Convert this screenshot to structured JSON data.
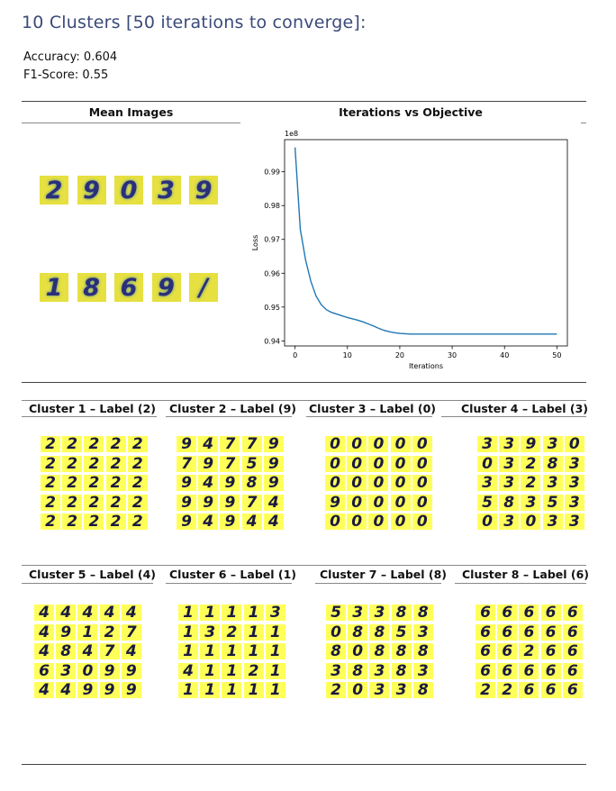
{
  "title": "10 Clusters [50 iterations to converge]:",
  "metrics": {
    "accuracy": "Accuracy: 0.604",
    "f1": "F1-Score: 0.55"
  },
  "top_headers": {
    "mean_images": "Mean Images",
    "iterations": "Iterations vs Objective"
  },
  "mean_images": {
    "row1": [
      "2",
      "9",
      "0",
      "3",
      "9"
    ],
    "row2": [
      "1",
      "8",
      "6",
      "9",
      "/"
    ]
  },
  "chart_data": {
    "type": "line",
    "title": "",
    "xlabel": "Iterations",
    "ylabel": "Loss",
    "multiplier_label": "1e8",
    "xlim": [
      -2,
      52
    ],
    "ylim": [
      0.9385,
      0.9995
    ],
    "xticks": [
      0,
      10,
      20,
      30,
      40,
      50
    ],
    "yticks": [
      0.94,
      0.95,
      0.96,
      0.97,
      0.98,
      0.99
    ],
    "ytick_labels": [
      "0.94",
      "0.95",
      "0.96",
      "0.97",
      "0.98",
      "0.99"
    ],
    "color": "#1f77b4",
    "grid": false,
    "series": [
      {
        "x": [
          0,
          1,
          2,
          3,
          4,
          5,
          6,
          7,
          8,
          9,
          10,
          11,
          12,
          13,
          14,
          15,
          16,
          17,
          18,
          19,
          20,
          21,
          22,
          23,
          24,
          25,
          26,
          27,
          28,
          29,
          30,
          31,
          32,
          33,
          34,
          35,
          36,
          37,
          38,
          39,
          40,
          41,
          42,
          43,
          44,
          45,
          46,
          47,
          48,
          49,
          50
        ],
        "values": [
          0.9972,
          0.973,
          0.964,
          0.9577,
          0.9533,
          0.9507,
          0.9492,
          0.9484,
          0.9479,
          0.9474,
          0.9469,
          0.9465,
          0.9461,
          0.9456,
          0.945,
          0.9444,
          0.9437,
          0.9431,
          0.9427,
          0.9424,
          0.9422,
          0.9421,
          0.942,
          0.942,
          0.942,
          0.942,
          0.942,
          0.942,
          0.942,
          0.942,
          0.942,
          0.942,
          0.942,
          0.942,
          0.942,
          0.942,
          0.942,
          0.942,
          0.942,
          0.942,
          0.942,
          0.942,
          0.942,
          0.942,
          0.942,
          0.942,
          0.942,
          0.942,
          0.942,
          0.942,
          0.942
        ]
      }
    ]
  },
  "clusters_row1": [
    {
      "label": "Cluster 1 – Label (2)",
      "digits": [
        [
          "2",
          "2",
          "2",
          "2",
          "2"
        ],
        [
          "2",
          "2",
          "2",
          "2",
          "2"
        ],
        [
          "2",
          "2",
          "2",
          "2",
          "2"
        ],
        [
          "2",
          "2",
          "2",
          "2",
          "2"
        ],
        [
          "2",
          "2",
          "2",
          "2",
          "2"
        ]
      ]
    },
    {
      "label": "Cluster 2 – Label (9)",
      "digits": [
        [
          "9",
          "4",
          "7",
          "7",
          "9"
        ],
        [
          "7",
          "9",
          "7",
          "5",
          "9"
        ],
        [
          "9",
          "4",
          "9",
          "8",
          "9"
        ],
        [
          "9",
          "9",
          "9",
          "7",
          "4"
        ],
        [
          "9",
          "4",
          "9",
          "4",
          "4"
        ]
      ]
    },
    {
      "label": "Cluster 3 – Label (0)",
      "digits": [
        [
          "0",
          "0",
          "0",
          "0",
          "0"
        ],
        [
          "0",
          "0",
          "0",
          "0",
          "0"
        ],
        [
          "0",
          "0",
          "0",
          "0",
          "0"
        ],
        [
          "9",
          "0",
          "0",
          "0",
          "0"
        ],
        [
          "0",
          "0",
          "0",
          "0",
          "0"
        ]
      ]
    },
    {
      "label": "Cluster 4 – Label (3)",
      "digits": [
        [
          "3",
          "3",
          "9",
          "3",
          "0"
        ],
        [
          "0",
          "3",
          "2",
          "8",
          "3"
        ],
        [
          "3",
          "3",
          "2",
          "3",
          "3"
        ],
        [
          "5",
          "8",
          "3",
          "5",
          "3"
        ],
        [
          "0",
          "3",
          "0",
          "3",
          "3"
        ]
      ]
    }
  ],
  "clusters_row2": [
    {
      "label": "Cluster 5 – Label (4)",
      "digits": [
        [
          "4",
          "4",
          "4",
          "4",
          "4"
        ],
        [
          "4",
          "9",
          "1",
          "2",
          "7"
        ],
        [
          "4",
          "8",
          "4",
          "7",
          "4"
        ],
        [
          "6",
          "3",
          "0",
          "9",
          "9"
        ],
        [
          "4",
          "4",
          "9",
          "9",
          "9"
        ]
      ]
    },
    {
      "label": "Cluster 6 – Label (1)",
      "digits": [
        [
          "1",
          "1",
          "1",
          "1",
          "3"
        ],
        [
          "1",
          "3",
          "2",
          "1",
          "1"
        ],
        [
          "1",
          "1",
          "1",
          "1",
          "1"
        ],
        [
          "4",
          "1",
          "1",
          "2",
          "1"
        ],
        [
          "1",
          "1",
          "1",
          "1",
          "1"
        ]
      ]
    },
    {
      "label": "Cluster 7 – Label (8)",
      "digits": [
        [
          "5",
          "3",
          "3",
          "8",
          "8"
        ],
        [
          "0",
          "8",
          "8",
          "5",
          "3"
        ],
        [
          "8",
          "0",
          "8",
          "8",
          "8"
        ],
        [
          "3",
          "8",
          "3",
          "8",
          "3"
        ],
        [
          "2",
          "0",
          "3",
          "3",
          "8"
        ]
      ]
    },
    {
      "label": "Cluster 8 – Label (6)",
      "digits": [
        [
          "6",
          "6",
          "6",
          "6",
          "6"
        ],
        [
          "6",
          "6",
          "6",
          "6",
          "6"
        ],
        [
          "6",
          "6",
          "2",
          "6",
          "6"
        ],
        [
          "6",
          "6",
          "6",
          "6",
          "6"
        ],
        [
          "2",
          "2",
          "6",
          "6",
          "6"
        ]
      ]
    }
  ]
}
